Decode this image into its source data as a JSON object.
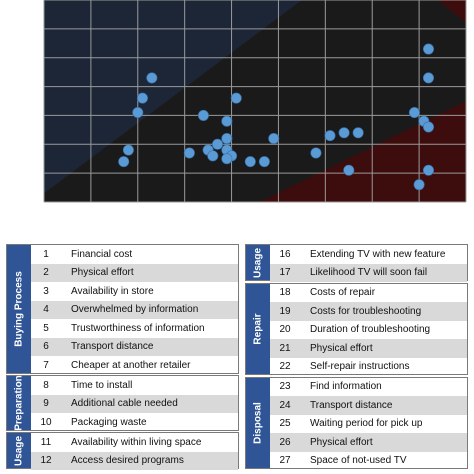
{
  "chart_data": {
    "type": "scatter",
    "title": "",
    "xlabel": "",
    "ylabel": "",
    "grid": true,
    "x_range": [
      0,
      9
    ],
    "y_range": [
      0,
      7
    ],
    "regions": [
      {
        "name": "upper-left",
        "color": "#1c2636"
      },
      {
        "name": "middle",
        "color": "#1a1a1a"
      },
      {
        "name": "lower-right",
        "color": "#3d0c0c"
      }
    ],
    "point_color": "#5b9bd5",
    "points": [
      {
        "x": 2.3,
        "y": 4.3
      },
      {
        "x": 2.1,
        "y": 3.6
      },
      {
        "x": 2.0,
        "y": 3.1
      },
      {
        "x": 1.8,
        "y": 1.8
      },
      {
        "x": 1.7,
        "y": 1.4
      },
      {
        "x": 4.1,
        "y": 3.6
      },
      {
        "x": 3.4,
        "y": 3.0
      },
      {
        "x": 3.9,
        "y": 2.8
      },
      {
        "x": 3.9,
        "y": 2.2
      },
      {
        "x": 3.7,
        "y": 2.0
      },
      {
        "x": 3.5,
        "y": 1.8
      },
      {
        "x": 3.9,
        "y": 1.8
      },
      {
        "x": 4.0,
        "y": 1.6
      },
      {
        "x": 3.9,
        "y": 1.5
      },
      {
        "x": 3.6,
        "y": 1.6
      },
      {
        "x": 3.1,
        "y": 1.7
      },
      {
        "x": 4.4,
        "y": 1.4
      },
      {
        "x": 4.9,
        "y": 2.2
      },
      {
        "x": 4.7,
        "y": 1.4
      },
      {
        "x": 5.8,
        "y": 1.7
      },
      {
        "x": 6.1,
        "y": 2.3
      },
      {
        "x": 6.4,
        "y": 2.4
      },
      {
        "x": 6.7,
        "y": 2.4
      },
      {
        "x": 6.5,
        "y": 1.1
      },
      {
        "x": 8.2,
        "y": 5.3
      },
      {
        "x": 8.2,
        "y": 4.3
      },
      {
        "x": 7.9,
        "y": 3.1
      },
      {
        "x": 8.1,
        "y": 2.8
      },
      {
        "x": 8.2,
        "y": 2.6
      },
      {
        "x": 8.2,
        "y": 1.1
      },
      {
        "x": 8.0,
        "y": 0.6
      }
    ]
  },
  "table": {
    "left": [
      {
        "group": "Buying Process",
        "rows": [
          {
            "num": "1",
            "label": "Financial cost"
          },
          {
            "num": "2",
            "label": "Physical effort"
          },
          {
            "num": "3",
            "label": "Availability in store"
          },
          {
            "num": "4",
            "label": "Overwhelmed by information"
          },
          {
            "num": "5",
            "label": "Trustworthiness of information"
          },
          {
            "num": "6",
            "label": "Transport distance"
          },
          {
            "num": "7",
            "label": "Cheaper at another retailer"
          }
        ]
      },
      {
        "group": "Preparation",
        "rows": [
          {
            "num": "8",
            "label": "Time to install"
          },
          {
            "num": "9",
            "label": "Additional cable needed"
          },
          {
            "num": "10",
            "label": "Packaging waste"
          }
        ]
      },
      {
        "group": "Usage",
        "rows": [
          {
            "num": "11",
            "label": "Availability within living space"
          },
          {
            "num": "12",
            "label": "Access desired programs"
          }
        ]
      }
    ],
    "right": [
      {
        "group": "Usage",
        "rows": [
          {
            "num": "16",
            "label": "Extending TV with new feature"
          },
          {
            "num": "17",
            "label": "Likelihood TV will soon fail"
          }
        ]
      },
      {
        "group": "Repair",
        "rows": [
          {
            "num": "18",
            "label": "Costs of repair"
          },
          {
            "num": "19",
            "label": "Costs for troubleshooting"
          },
          {
            "num": "20",
            "label": "Duration of troubleshooting"
          },
          {
            "num": "21",
            "label": "Physical effort"
          },
          {
            "num": "22",
            "label": "Self-repair instructions"
          }
        ]
      },
      {
        "group": "Disposal",
        "rows": [
          {
            "num": "23",
            "label": "Find information"
          },
          {
            "num": "24",
            "label": "Transport distance"
          },
          {
            "num": "25",
            "label": "Waiting period for pick up"
          },
          {
            "num": "26",
            "label": "Physical effort"
          },
          {
            "num": "27",
            "label": "Space of not-used TV"
          }
        ]
      }
    ]
  }
}
